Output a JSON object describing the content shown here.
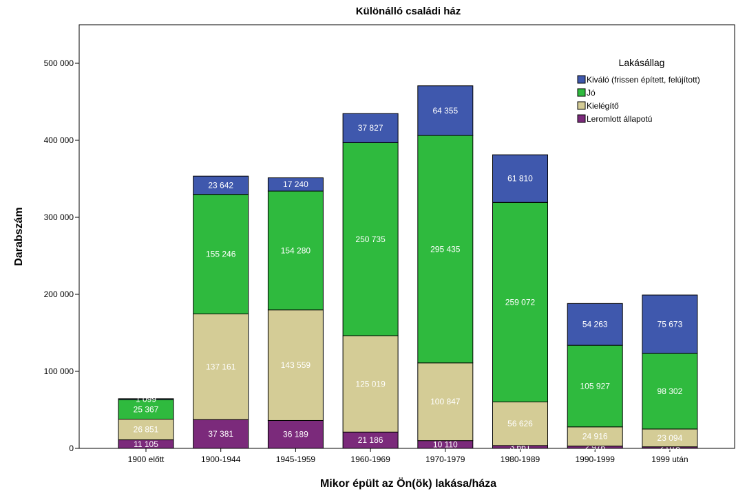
{
  "chart_data": {
    "type": "bar",
    "stacked": true,
    "title": "Különálló családi ház",
    "xlabel": "Mikor épült az Ön(ök) lakása/háza",
    "ylabel": "Darabszám",
    "ylim": [
      0,
      550000
    ],
    "yticks": [
      0,
      100000,
      200000,
      300000,
      400000,
      500000
    ],
    "ytick_labels": [
      "0",
      "100 000",
      "200 000",
      "300 000",
      "400 000",
      "500 000"
    ],
    "grid": false,
    "legend_title": "Lakásállag",
    "legend_position": "top-right",
    "categories": [
      "1900 előtt",
      "1900-1944",
      "1945-1959",
      "1960-1969",
      "1970-1979",
      "1980-1989",
      "1990-1999",
      "1999 után"
    ],
    "series": [
      {
        "name": "Leromlott állapotú",
        "color": "#7b2a7b",
        "values": [
          11105,
          37381,
          36189,
          21186,
          10110,
          3661,
          2976,
          2018
        ],
        "labels": [
          "11 105",
          "37 381",
          "36 189",
          "21 186",
          "10 110",
          "3 661",
          "2 976",
          "2 018"
        ]
      },
      {
        "name": "Kielégítő",
        "color": "#d4cc96",
        "values": [
          26851,
          137161,
          143559,
          125019,
          100847,
          56626,
          24916,
          23094
        ],
        "labels": [
          "26 851",
          "137 161",
          "143 559",
          "125 019",
          "100 847",
          "56 626",
          "24 916",
          "23 094"
        ]
      },
      {
        "name": "Jó",
        "color": "#2fba3e",
        "values": [
          25367,
          155246,
          154280,
          250735,
          295435,
          259072,
          105927,
          98302
        ],
        "labels": [
          "25 367",
          "155 246",
          "154 280",
          "250 735",
          "295 435",
          "259 072",
          "105 927",
          "98 302"
        ]
      },
      {
        "name": "Kiváló (frissen épített, felújított)",
        "color": "#3f58ad",
        "values": [
          1099,
          23642,
          17240,
          37827,
          64355,
          61810,
          54263,
          75673
        ],
        "labels": [
          "1 099",
          "23 642",
          "17 240",
          "37 827",
          "64 355",
          "61 810",
          "54 263",
          "75 673"
        ]
      }
    ]
  }
}
